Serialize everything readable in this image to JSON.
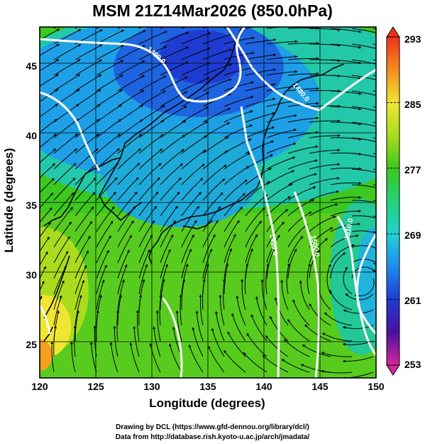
{
  "title": "MSM 21Z14Mar2026 (850.0hPa)",
  "x_axis": {
    "label": "Longitude (degrees)",
    "ticks": [
      "120",
      "125",
      "130",
      "135",
      "140",
      "145",
      "150"
    ],
    "range": [
      120,
      150
    ]
  },
  "y_axis": {
    "label": "Latitude  (degrees)",
    "ticks": [
      "25",
      "30",
      "35",
      "40",
      "45"
    ],
    "range": [
      22.4,
      47.6
    ]
  },
  "colorbar": {
    "ticks": [
      "293",
      "285",
      "277",
      "269",
      "261",
      "253"
    ],
    "range": [
      253,
      293
    ],
    "colors": [
      "#d4289a",
      "#4b10a0",
      "#1e3cd2",
      "#1e8cf0",
      "#23d2d2",
      "#23d278",
      "#3cc81e",
      "#aadc1e",
      "#f0e632",
      "#f58c1e",
      "#f0321e"
    ]
  },
  "contour_labels": [
    "1490.0",
    "1480.0",
    "1490.0",
    "1500.0",
    "1510.0"
  ],
  "credits": {
    "line1": "Drawing by DCL (https://www.gfd-dennou.org/library/dcl/)",
    "line2": "Data from http://database.rish.kyoto-u.ac.jp/arch/jmadata/"
  }
}
